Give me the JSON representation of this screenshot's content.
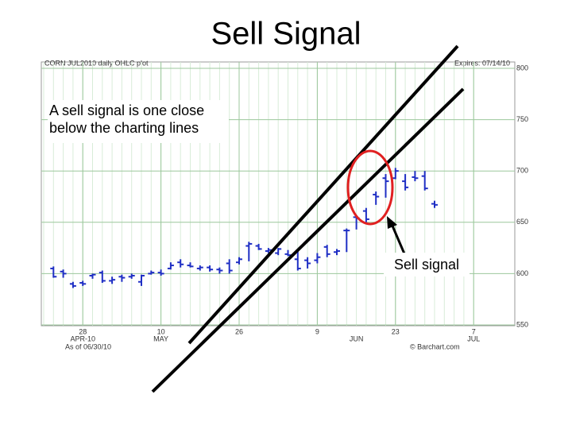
{
  "chart_data": {
    "type": "ohlc",
    "title": "Sell Signal",
    "chart_header": "CORN JUL2010 daily OHLC plot",
    "expires": "Expires: 07/14/10",
    "as_of": "As of 06/30/10",
    "source": "© Barchart.com",
    "annotations": [
      "A sell signal is one close below the charting lines",
      "Sell signal"
    ],
    "color": "#1f2fc4",
    "grid": true,
    "categories": [
      null,
      null,
      null,
      null,
      "28",
      null,
      null,
      null,
      null,
      null,
      null,
      null,
      "10",
      null,
      null,
      null,
      null,
      null,
      null,
      null,
      "26",
      null,
      null,
      null,
      null,
      null,
      null,
      null,
      "9",
      null,
      null,
      null,
      null,
      null,
      null,
      null,
      "23",
      null,
      null,
      null,
      null,
      null,
      null,
      null,
      "7"
    ],
    "x_sublabels": [
      null,
      null,
      null,
      null,
      "APR-10",
      null,
      null,
      null,
      null,
      null,
      null,
      null,
      "MAY",
      null,
      null,
      null,
      null,
      null,
      null,
      null,
      null,
      null,
      null,
      null,
      null,
      null,
      null,
      null,
      null,
      null,
      null,
      null,
      "JUN",
      null,
      null,
      null,
      null,
      null,
      null,
      null,
      null,
      null,
      null,
      null,
      "JUL"
    ],
    "open": [
      null,
      605,
      602,
      590,
      591,
      598,
      601,
      593,
      597,
      597,
      592,
      600,
      601,
      605,
      611,
      608,
      605,
      606,
      604,
      610,
      611,
      627,
      627,
      622,
      620,
      619,
      614,
      613,
      613,
      626,
      621,
      642,
      655,
      661,
      677,
      693,
      693,
      690,
      694,
      695,
      668,
      null,
      null,
      null,
      null
    ],
    "high": [
      null,
      607,
      604,
      592,
      593,
      600,
      603,
      597,
      599,
      600,
      599,
      603,
      604,
      611,
      614,
      611,
      608,
      608,
      606,
      614,
      616,
      631,
      629,
      625,
      625,
      623,
      624,
      616,
      620,
      628,
      624,
      644,
      657,
      664,
      680,
      697,
      703,
      697,
      700,
      700,
      671,
      null,
      null,
      null,
      null
    ],
    "low": [
      null,
      596,
      596,
      586,
      588,
      595,
      591,
      590,
      592,
      595,
      588,
      599,
      598,
      604,
      606,
      606,
      603,
      602,
      600,
      600,
      609,
      612,
      623,
      620,
      618,
      617,
      603,
      605,
      610,
      616,
      618,
      621,
      643,
      650,
      667,
      674,
      692,
      681,
      690,
      681,
      664,
      null,
      null,
      null,
      null
    ],
    "close": [
      null,
      597,
      600,
      588,
      590,
      599,
      593,
      594,
      596,
      598,
      598,
      601,
      600,
      608,
      609,
      607,
      606,
      604,
      603,
      603,
      614,
      629,
      624,
      623,
      624,
      618,
      605,
      610,
      616,
      619,
      622,
      642,
      654,
      653,
      675,
      690,
      700,
      684,
      693,
      683,
      667,
      null,
      null,
      null,
      null
    ],
    "ylim": [
      550,
      800
    ],
    "yticks": [
      550,
      600,
      650,
      700,
      750,
      800
    ]
  }
}
